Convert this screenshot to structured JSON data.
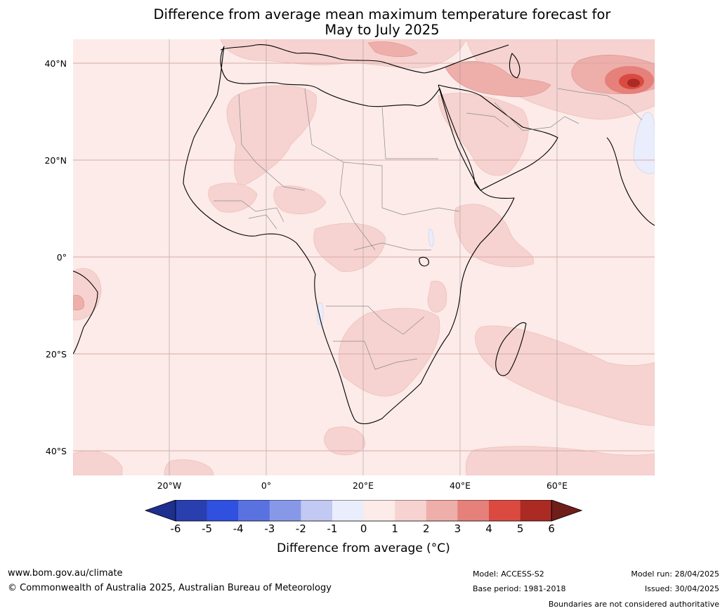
{
  "title": {
    "line1": "Difference from average mean maximum temperature forecast for",
    "line2": "May to July 2025"
  },
  "map": {
    "lat_labels": [
      "40°N",
      "20°N",
      "0°",
      "20°S",
      "40°S"
    ],
    "lon_labels": [
      "20°W",
      "0°",
      "20°E",
      "40°E",
      "60°E"
    ],
    "background_color": "#fcebe8",
    "ocean_color": "#fcebe8"
  },
  "colorbar": {
    "ticks": [
      "-6",
      "-5",
      "-4",
      "-3",
      "-2",
      "-1",
      "0",
      "1",
      "2",
      "3",
      "4",
      "5",
      "6"
    ],
    "colors": [
      "#1d2f8f",
      "#2a3faf",
      "#3050e0",
      "#5a72e0",
      "#8898e8",
      "#c2c9f2",
      "#eaedfb",
      "#fcebe8",
      "#f6d3d0",
      "#eeaeaa",
      "#e5807a",
      "#da4a40",
      "#ab2a24",
      "#701e1a"
    ],
    "label": "Difference from average (°C)"
  },
  "footer": {
    "url": "www.bom.gov.au/climate",
    "copyright": "© Commonwealth of Australia 2025, Australian Bureau of Meteorology",
    "model": "Model: ACCESS-S2",
    "base_period": "Base period: 1981-2018",
    "model_run": "Model run: 28/04/2025",
    "issued": "Issued: 30/04/2025",
    "disclaimer": "Boundaries are not considered authoritative"
  }
}
